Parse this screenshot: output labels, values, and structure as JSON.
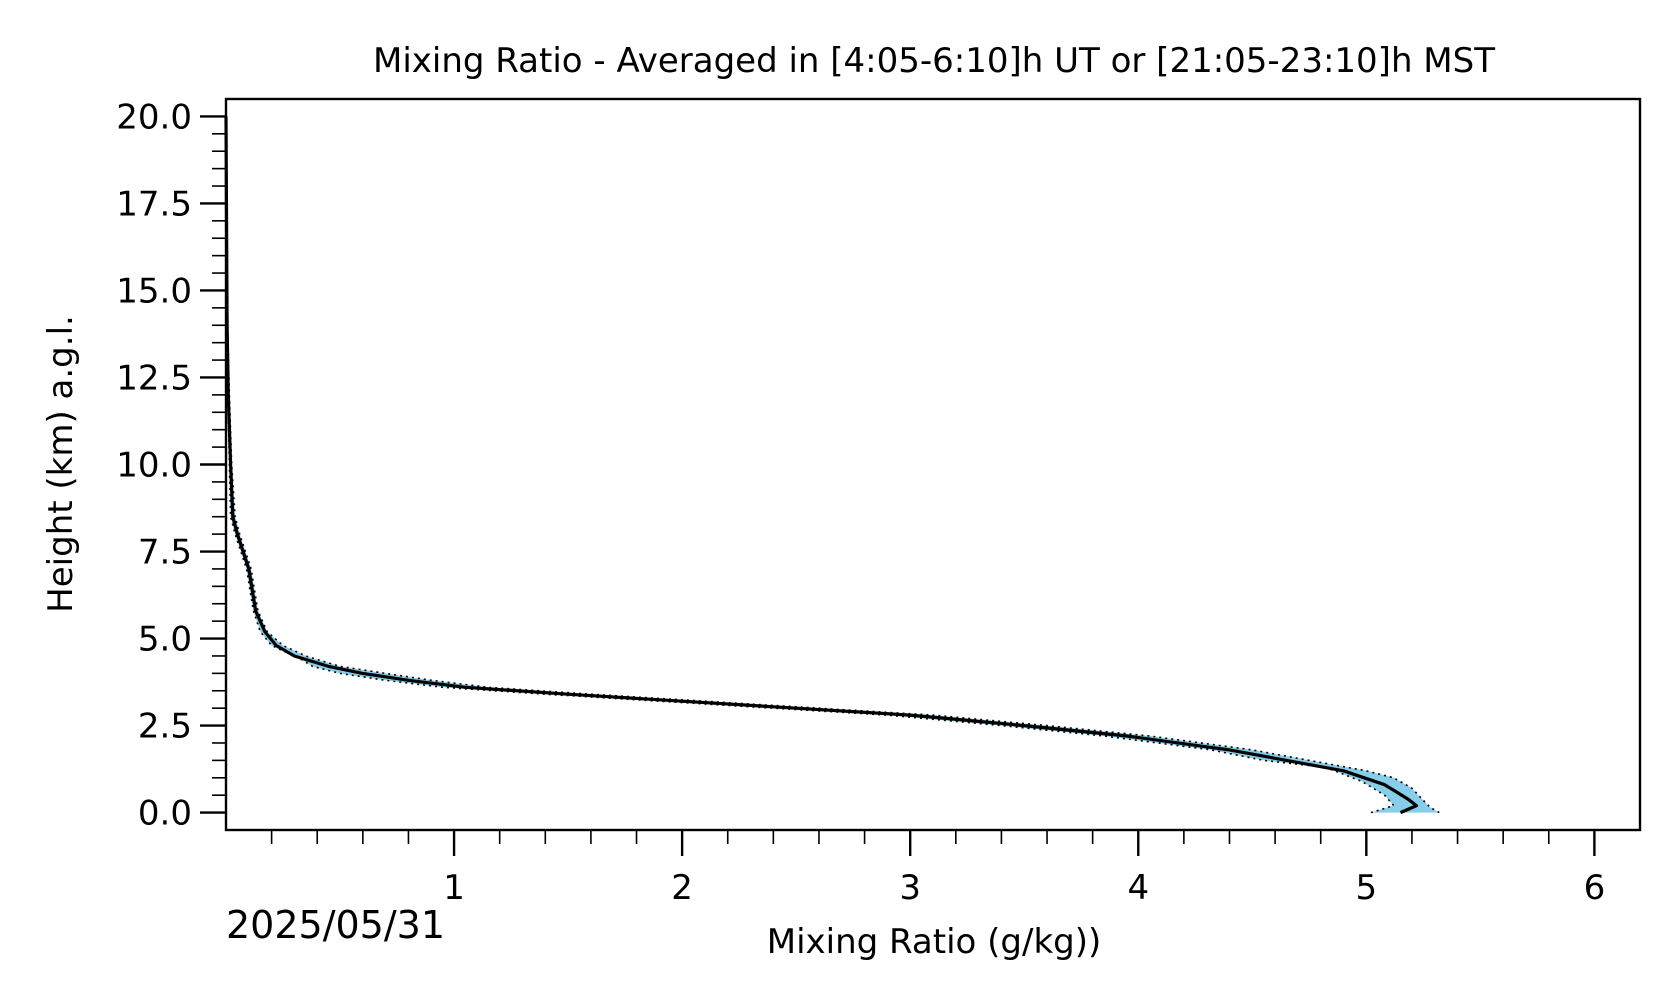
{
  "chart_data": {
    "type": "line",
    "title": "Mixing Ratio - Averaged in [4:05-6:10]h UT or [21:05-23:10]h MST",
    "xlabel": "Mixing Ratio (g/kg))",
    "ylabel": "Height (km) a.g.l.",
    "date_label": "2025/05/31",
    "xlim": [
      0,
      6.2
    ],
    "ylim": [
      -0.5,
      20.5
    ],
    "x_ticks": [
      1,
      2,
      3,
      4,
      5,
      6
    ],
    "x_tick_labels": [
      "1",
      "2",
      "3",
      "4",
      "5",
      "6"
    ],
    "y_ticks": [
      0.0,
      2.5,
      5.0,
      7.5,
      10.0,
      12.5,
      15.0,
      17.5,
      20.0
    ],
    "y_tick_labels": [
      "0.0",
      "2.5",
      "5.0",
      "7.5",
      "10.0",
      "12.5",
      "15.0",
      "17.5",
      "20.0"
    ],
    "x_minor_step": 0.2,
    "y_minor_step": 0.5,
    "grid": false,
    "legend": "none",
    "colors": {
      "line": "#000000",
      "band": "#87ceeb",
      "band_edge": "#000000"
    },
    "series": [
      {
        "role": "mean",
        "y": [
          0.0,
          0.2,
          0.4,
          0.8,
          1.2,
          1.5,
          1.8,
          2.2,
          2.5,
          2.8,
          3.0,
          3.2,
          3.4,
          3.6,
          3.8,
          4.0,
          4.2,
          4.5,
          4.8,
          5.2,
          5.8,
          7.0,
          8.0,
          8.5,
          10.0,
          12.0,
          14.0,
          20.0
        ],
        "x": [
          5.15,
          5.22,
          5.18,
          5.08,
          4.9,
          4.65,
          4.4,
          3.95,
          3.5,
          3.0,
          2.5,
          2.0,
          1.5,
          1.05,
          0.8,
          0.6,
          0.45,
          0.3,
          0.22,
          0.17,
          0.13,
          0.1,
          0.05,
          0.03,
          0.02,
          0.01,
          0.005,
          0.0
        ]
      },
      {
        "role": "upper-bound",
        "y": [
          0.0,
          0.15,
          0.35,
          0.7,
          1.0,
          1.2,
          1.5,
          1.8,
          2.2,
          2.5,
          2.8,
          3.0,
          3.2,
          3.4,
          3.6,
          3.8,
          4.0,
          4.2,
          4.5,
          4.8,
          5.2,
          5.8,
          7.0,
          8.0,
          8.5,
          10.0,
          12.0,
          14.0,
          20.0
        ],
        "x": [
          5.32,
          5.28,
          5.25,
          5.2,
          5.12,
          5.0,
          4.75,
          4.5,
          4.05,
          3.6,
          3.1,
          2.6,
          2.1,
          1.6,
          1.15,
          0.9,
          0.7,
          0.5,
          0.35,
          0.25,
          0.18,
          0.14,
          0.11,
          0.06,
          0.04,
          0.025,
          0.015,
          0.007,
          0.0
        ]
      },
      {
        "role": "lower-bound",
        "y": [
          0.0,
          0.2,
          0.5,
          0.9,
          1.3,
          1.5,
          1.8,
          2.2,
          2.5,
          2.8,
          3.0,
          3.2,
          3.4,
          3.6,
          3.8,
          4.0,
          4.2,
          4.4,
          4.8,
          5.2,
          5.8,
          7.0,
          8.0,
          8.5,
          10.0,
          12.0,
          14.0,
          20.0
        ],
        "x": [
          5.02,
          5.12,
          5.08,
          4.98,
          4.82,
          4.55,
          4.32,
          3.85,
          3.4,
          2.9,
          2.4,
          1.9,
          1.4,
          0.95,
          0.7,
          0.5,
          0.38,
          0.33,
          0.2,
          0.15,
          0.12,
          0.09,
          0.04,
          0.02,
          0.015,
          0.008,
          0.003,
          0.0
        ]
      }
    ]
  }
}
